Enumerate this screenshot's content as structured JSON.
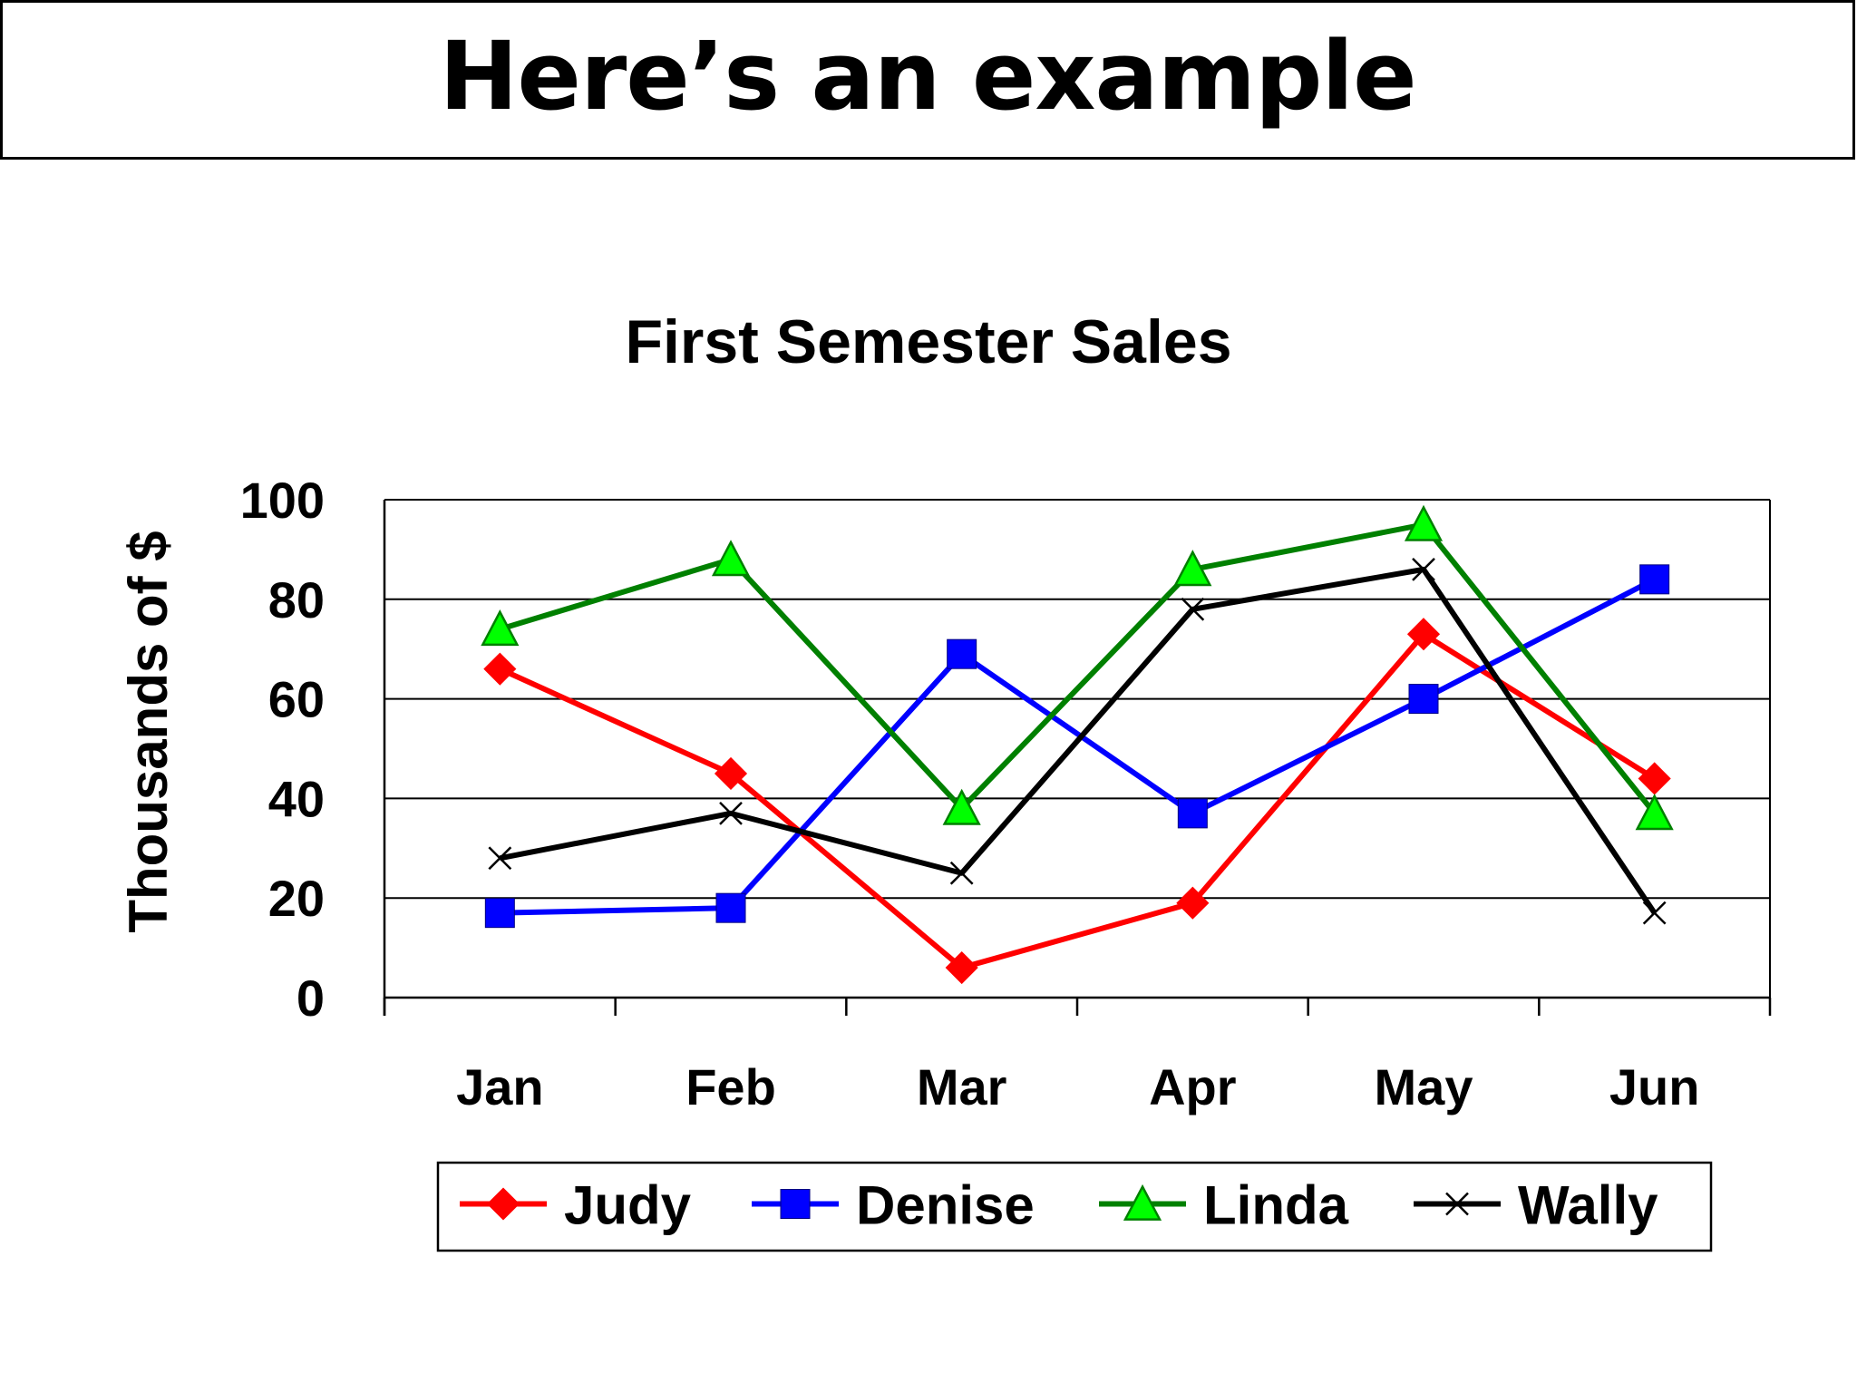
{
  "slide": {
    "title": "Here’s an example"
  },
  "chart_data": {
    "type": "line",
    "title": "First Semester Sales",
    "xlabel": "",
    "ylabel": "Thousands of $",
    "categories": [
      "Jan",
      "Feb",
      "Mar",
      "Apr",
      "May",
      "Jun"
    ],
    "ylim": [
      0,
      100
    ],
    "yticks": [
      0,
      20,
      40,
      60,
      80,
      100
    ],
    "grid": true,
    "legend_position": "bottom",
    "series": [
      {
        "name": "Judy",
        "color": "#ff0000",
        "marker": "diamond",
        "values": [
          66,
          45,
          6,
          19,
          73,
          44
        ]
      },
      {
        "name": "Denise",
        "color": "#0000ff",
        "marker": "square",
        "values": [
          17,
          18,
          69,
          37,
          60,
          84
        ]
      },
      {
        "name": "Linda",
        "color": "#008000",
        "marker": "triangle",
        "values": [
          74,
          88,
          38,
          86,
          95,
          37
        ]
      },
      {
        "name": "Wally",
        "color": "#000000",
        "marker": "x",
        "values": [
          28,
          37,
          25,
          78,
          86,
          17
        ]
      }
    ]
  }
}
